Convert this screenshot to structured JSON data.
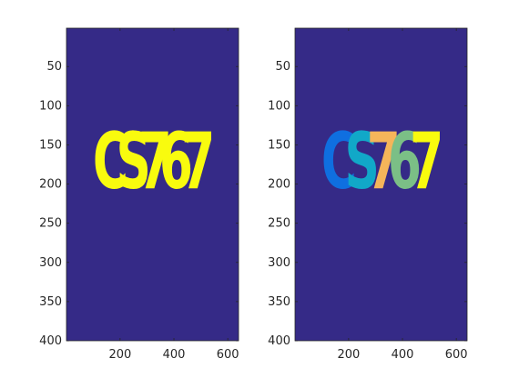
{
  "figure": {
    "background": "#ffffff",
    "tick_label_color": "#262626",
    "axes_color": "#262626"
  },
  "chart_data": [
    {
      "type": "heatmap",
      "panel": "binary",
      "xlim": [
        1,
        640
      ],
      "ylim": [
        400,
        1
      ],
      "y_reversed": true,
      "xticks": [
        200,
        400,
        600
      ],
      "yticks": [
        50,
        100,
        150,
        200,
        250,
        300,
        350,
        400
      ],
      "grid": false,
      "background_color": "#352a87",
      "text_content": "CS767",
      "glyphs": [
        {
          "char": "C",
          "color": "#f9fb0e",
          "x_center": 165,
          "y_baseline": 205
        },
        {
          "char": "S",
          "color": "#f9fb0e",
          "x_center": 250,
          "y_baseline": 205
        },
        {
          "char": "7",
          "color": "#f9fb0e",
          "x_center": 330,
          "y_baseline": 205
        },
        {
          "char": "6",
          "color": "#f9fb0e",
          "x_center": 408,
          "y_baseline": 205
        },
        {
          "char": "7",
          "color": "#f9fb0e",
          "x_center": 490,
          "y_baseline": 205
        }
      ]
    },
    {
      "type": "heatmap",
      "panel": "labeled",
      "xlim": [
        1,
        640
      ],
      "ylim": [
        400,
        1
      ],
      "y_reversed": true,
      "xticks": [
        200,
        400,
        600
      ],
      "yticks": [
        50,
        100,
        150,
        200,
        250,
        300,
        350,
        400
      ],
      "grid": false,
      "background_color": "#352a87",
      "text_content": "CS767",
      "glyphs": [
        {
          "char": "C",
          "color": "#0f6fe0",
          "x_center": 165,
          "y_baseline": 205
        },
        {
          "char": "S",
          "color": "#11a8c8",
          "x_center": 250,
          "y_baseline": 205
        },
        {
          "char": "7",
          "color": "#f5b55a",
          "x_center": 330,
          "y_baseline": 205
        },
        {
          "char": "6",
          "color": "#7bbf86",
          "x_center": 408,
          "y_baseline": 205
        },
        {
          "char": "7",
          "color": "#f9fb0e",
          "x_center": 490,
          "y_baseline": 205
        }
      ]
    }
  ]
}
